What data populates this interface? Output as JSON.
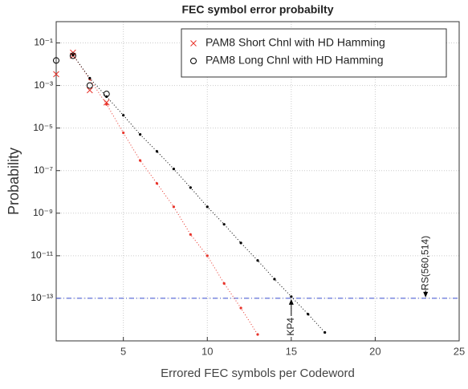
{
  "chart_data": {
    "type": "line",
    "title": "FEC symbol error probabilty",
    "xlabel": "Errored FEC symbols per Codeword",
    "ylabel": "Probability",
    "xlim": [
      1,
      25
    ],
    "xticks": [
      5,
      10,
      15,
      20,
      25
    ],
    "ylim": [
      1e-15,
      1
    ],
    "yscale": "log",
    "yticks": [
      {
        "value": 0.1,
        "label": "10⁻¹"
      },
      {
        "value": 0.001,
        "label": "10⁻³"
      },
      {
        "value": 1e-05,
        "label": "10⁻⁵"
      },
      {
        "value": 1e-07,
        "label": "10⁻⁷"
      },
      {
        "value": 1e-09,
        "label": "10⁻⁹"
      },
      {
        "value": 1e-11,
        "label": "10⁻¹¹"
      },
      {
        "value": 1e-13,
        "label": "10⁻¹³"
      }
    ],
    "grid": true,
    "legend": "upper right",
    "series": [
      {
        "name": "PAM8 Short Chnl with HD Hamming",
        "color": "#e8332a",
        "marker": "x",
        "x": [
          1,
          2,
          2,
          3,
          4
        ],
        "values": [
          0.0034,
          0.035,
          0.025,
          0.0006,
          0.00016
        ]
      },
      {
        "name": "PAM8 Long Chnl with HD Hamming",
        "color": "#000000",
        "marker": "o",
        "x": [
          1,
          2,
          3,
          4
        ],
        "values": [
          0.015,
          0.025,
          0.001,
          0.0004
        ]
      },
      {
        "color": "#e8332a",
        "marker": "dot",
        "linestyle": "dotted",
        "x": [
          2,
          3,
          4,
          5,
          6,
          7,
          8,
          9,
          10,
          11,
          12,
          13
        ],
        "values": [
          0.027,
          0.002,
          0.00013,
          6e-06,
          3e-07,
          2.5e-08,
          2e-09,
          1e-10,
          1e-11,
          5e-13,
          3.5e-14,
          2e-15
        ]
      },
      {
        "color": "#000000",
        "marker": "dot",
        "linestyle": "dotted",
        "x": [
          2,
          3,
          4,
          5,
          6,
          7,
          8,
          9,
          10,
          11,
          12,
          13,
          14,
          15,
          16,
          17
        ],
        "values": [
          0.027,
          0.0022,
          0.0003,
          4e-05,
          5e-06,
          8e-07,
          1.2e-07,
          1.6e-08,
          2e-09,
          3e-10,
          4e-11,
          6e-12,
          8e-13,
          1.2e-13,
          1.8e-14,
          2.5e-15
        ]
      }
    ],
    "hline": {
      "value": 1e-13,
      "color": "#3b4fd1"
    },
    "annotations": [
      {
        "text": "KP4",
        "x": 15,
        "y": 1e-13,
        "position": "below"
      },
      {
        "text": "RS(560,514)",
        "x": 23,
        "y": 1e-13,
        "position": "above"
      }
    ]
  }
}
